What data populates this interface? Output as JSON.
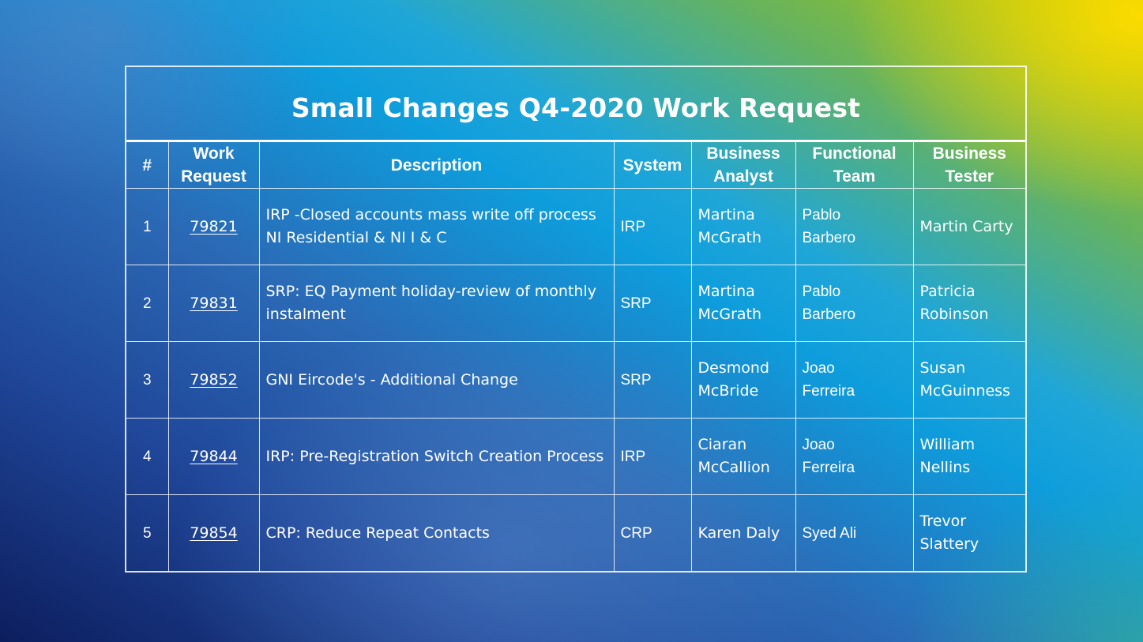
{
  "title": "Small Changes Q4-2020 Work Request",
  "columns": {
    "num": "#",
    "work_request": [
      "Work",
      "Request"
    ],
    "description": "Description",
    "system": "System",
    "business_analyst": [
      "Business",
      "Analyst"
    ],
    "functional_team": [
      "Functional",
      "Team"
    ],
    "business_tester": [
      "Business",
      "Tester"
    ]
  },
  "rows": [
    {
      "num": "1",
      "work_request": "79821",
      "description": [
        "IRP -Closed accounts  mass write off process",
        "NI Residential & NI I & C"
      ],
      "system": "IRP",
      "business_analyst": [
        "Martina",
        "McGrath"
      ],
      "functional_team": [
        "Pablo",
        "Barbero"
      ],
      "business_tester": [
        "Martin Carty"
      ]
    },
    {
      "num": "2",
      "work_request": "79831",
      "description": [
        "SRP: EQ Payment holiday-review of monthly",
        "instalment"
      ],
      "system": "SRP",
      "business_analyst": [
        "Martina",
        "McGrath"
      ],
      "functional_team": [
        "Pablo",
        "Barbero"
      ],
      "business_tester": [
        "Patricia",
        "Robinson"
      ]
    },
    {
      "num": "3",
      "work_request": "79852",
      "description": [
        "GNI Eircode's - Additional Change"
      ],
      "system": "SRP",
      "business_analyst": [
        "Desmond",
        "McBride"
      ],
      "functional_team": [
        "Joao",
        "Ferreira"
      ],
      "business_tester": [
        "Susan",
        "McGuinness"
      ]
    },
    {
      "num": "4",
      "work_request": "79844",
      "description": [
        "IRP: Pre-Registration Switch Creation Process"
      ],
      "system": "IRP",
      "business_analyst": [
        "Ciaran",
        "McCallion"
      ],
      "functional_team": [
        "Joao",
        "Ferreira"
      ],
      "business_tester": [
        "William",
        "Nellins"
      ]
    },
    {
      "num": "5",
      "work_request": "79854",
      "description": [
        "CRP: Reduce Repeat Contacts"
      ],
      "system": "CRP",
      "business_analyst": [
        "Karen Daly"
      ],
      "functional_team": [
        "Syed Ali"
      ],
      "business_tester": [
        "Trevor",
        "Slattery"
      ]
    }
  ]
}
